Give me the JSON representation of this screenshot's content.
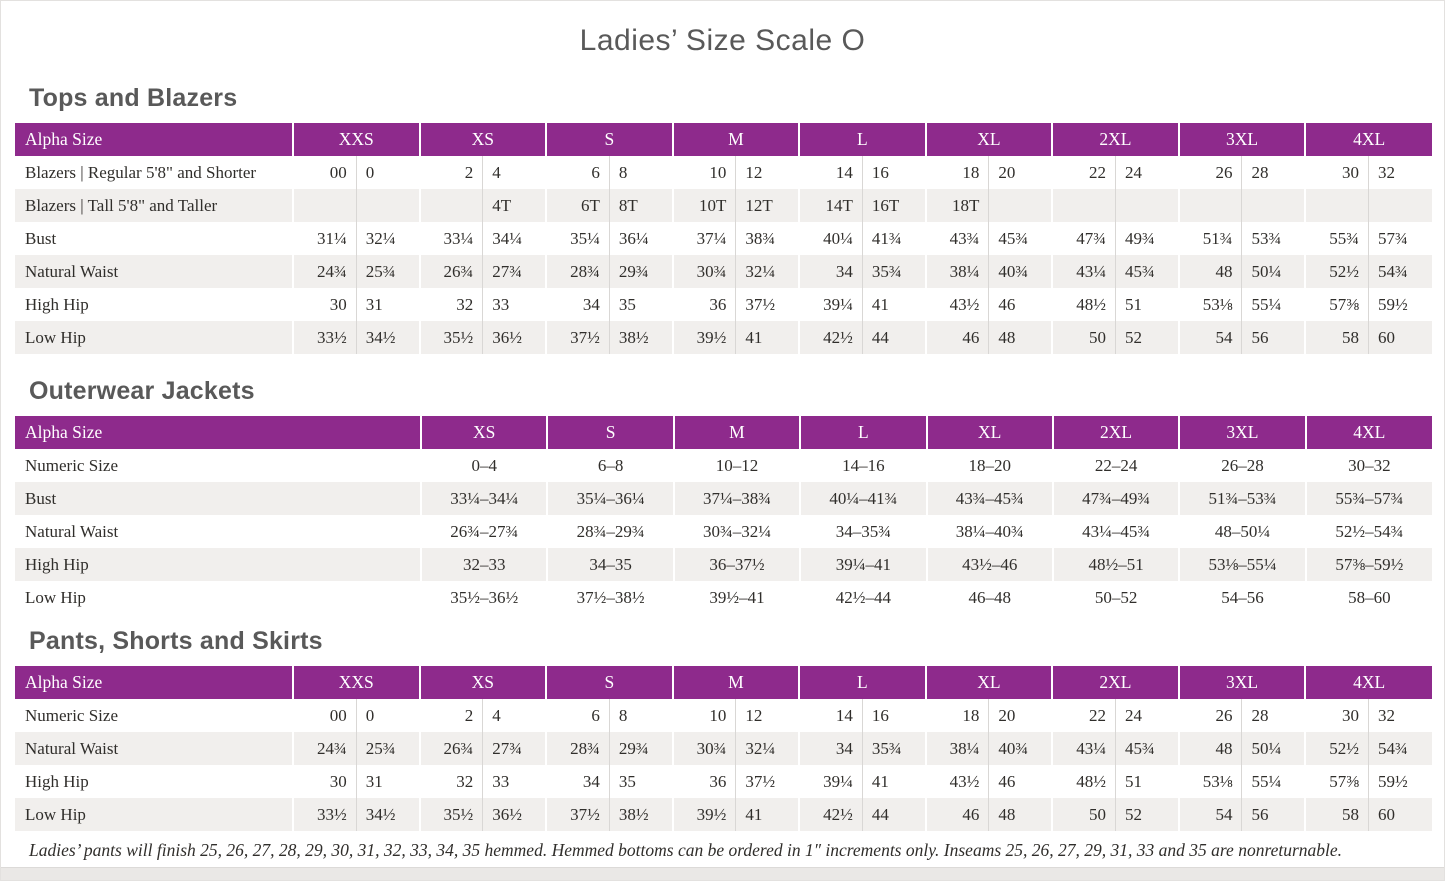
{
  "page": {
    "title": "Ladies’ Size Scale O",
    "footnote": "Ladies’ pants will finish 25, 26, 27, 28, 29, 30, 31, 32, 33, 34, 35 hemmed. Hemmed bottoms can be ordered in 1″ increments only. Inseams 25, 26, 27, 29, 31, 33 and 35 are nonreturnable."
  },
  "colors": {
    "header_purple": "#8e2a8c",
    "row_stripe": "#f1efed",
    "divider_gray": "#d9d7d5",
    "heading_gray": "#595959",
    "body_text": "#302e2b"
  },
  "tables": [
    {
      "section": "Tops and Blazers",
      "label_header": "Alpha Size",
      "type": "paired",
      "sizes": [
        "XXS",
        "XS",
        "S",
        "M",
        "L",
        "XL",
        "2XL",
        "3XL",
        "4XL"
      ],
      "rows": [
        {
          "label": "Blazers | Regular 5'8\" and Shorter",
          "values": [
            [
              "00",
              "0"
            ],
            [
              "2",
              "4"
            ],
            [
              "6",
              "8"
            ],
            [
              "10",
              "12"
            ],
            [
              "14",
              "16"
            ],
            [
              "18",
              "20"
            ],
            [
              "22",
              "24"
            ],
            [
              "26",
              "28"
            ],
            [
              "30",
              "32"
            ]
          ]
        },
        {
          "label": "Blazers | Tall 5'8\" and Taller",
          "values": [
            [
              "",
              ""
            ],
            [
              "",
              "4T"
            ],
            [
              "6T",
              "8T"
            ],
            [
              "10T",
              "12T"
            ],
            [
              "14T",
              "16T"
            ],
            [
              "18T",
              ""
            ],
            [
              "",
              ""
            ],
            [
              "",
              ""
            ],
            [
              "",
              ""
            ]
          ]
        },
        {
          "label": "Bust",
          "values": [
            [
              "31¼",
              "32¼"
            ],
            [
              "33¼",
              "34¼"
            ],
            [
              "35¼",
              "36¼"
            ],
            [
              "37¼",
              "38¾"
            ],
            [
              "40¼",
              "41¾"
            ],
            [
              "43¾",
              "45¾"
            ],
            [
              "47¾",
              "49¾"
            ],
            [
              "51¾",
              "53¾"
            ],
            [
              "55¾",
              "57¾"
            ]
          ]
        },
        {
          "label": "Natural Waist",
          "values": [
            [
              "24¾",
              "25¾"
            ],
            [
              "26¾",
              "27¾"
            ],
            [
              "28¾",
              "29¾"
            ],
            [
              "30¾",
              "32¼"
            ],
            [
              "34",
              "35¾"
            ],
            [
              "38¼",
              "40¾"
            ],
            [
              "43¼",
              "45¾"
            ],
            [
              "48",
              "50¼"
            ],
            [
              "52½",
              "54¾"
            ]
          ]
        },
        {
          "label": "High Hip",
          "values": [
            [
              "30",
              "31"
            ],
            [
              "32",
              "33"
            ],
            [
              "34",
              "35"
            ],
            [
              "36",
              "37½"
            ],
            [
              "39¼",
              "41"
            ],
            [
              "43½",
              "46"
            ],
            [
              "48½",
              "51"
            ],
            [
              "53⅛",
              "55¼"
            ],
            [
              "57⅜",
              "59½"
            ]
          ]
        },
        {
          "label": "Low Hip",
          "values": [
            [
              "33½",
              "34½"
            ],
            [
              "35½",
              "36½"
            ],
            [
              "37½",
              "38½"
            ],
            [
              "39½",
              "41"
            ],
            [
              "42½",
              "44"
            ],
            [
              "46",
              "48"
            ],
            [
              "50",
              "52"
            ],
            [
              "54",
              "56"
            ],
            [
              "58",
              "60"
            ]
          ]
        }
      ]
    },
    {
      "section": "Outerwear Jackets",
      "label_header": "Alpha Size",
      "type": "single",
      "sizes": [
        "XS",
        "S",
        "M",
        "L",
        "XL",
        "2XL",
        "3XL",
        "4XL"
      ],
      "rows": [
        {
          "label": "Numeric Size",
          "values": [
            "0–4",
            "6–8",
            "10–12",
            "14–16",
            "18–20",
            "22–24",
            "26–28",
            "30–32"
          ]
        },
        {
          "label": "Bust",
          "values": [
            "33¼–34¼",
            "35¼–36¼",
            "37¼–38¾",
            "40¼–41¾",
            "43¾–45¾",
            "47¾–49¾",
            "51¾–53¾",
            "55¾–57¾"
          ]
        },
        {
          "label": "Natural Waist",
          "values": [
            "26¾–27¾",
            "28¾–29¾",
            "30¾–32¼",
            "34–35¾",
            "38¼–40¾",
            "43¼–45¾",
            "48–50¼",
            "52½–54¾"
          ]
        },
        {
          "label": "High Hip",
          "values": [
            "32–33",
            "34–35",
            "36–37½",
            "39¼–41",
            "43½–46",
            "48½–51",
            "53⅛–55¼",
            "57⅜–59½"
          ]
        },
        {
          "label": "Low Hip",
          "values": [
            "35½–36½",
            "37½–38½",
            "39½–41",
            "42½–44",
            "46–48",
            "50–52",
            "54–56",
            "58–60"
          ]
        }
      ]
    },
    {
      "section": "Pants, Shorts and Skirts",
      "label_header": "Alpha Size",
      "type": "paired",
      "sizes": [
        "XXS",
        "XS",
        "S",
        "M",
        "L",
        "XL",
        "2XL",
        "3XL",
        "4XL"
      ],
      "rows": [
        {
          "label": "Numeric Size",
          "values": [
            [
              "00",
              "0"
            ],
            [
              "2",
              "4"
            ],
            [
              "6",
              "8"
            ],
            [
              "10",
              "12"
            ],
            [
              "14",
              "16"
            ],
            [
              "18",
              "20"
            ],
            [
              "22",
              "24"
            ],
            [
              "26",
              "28"
            ],
            [
              "30",
              "32"
            ]
          ]
        },
        {
          "label": "Natural Waist",
          "values": [
            [
              "24¾",
              "25¾"
            ],
            [
              "26¾",
              "27¾"
            ],
            [
              "28¾",
              "29¾"
            ],
            [
              "30¾",
              "32¼"
            ],
            [
              "34",
              "35¾"
            ],
            [
              "38¼",
              "40¾"
            ],
            [
              "43¼",
              "45¾"
            ],
            [
              "48",
              "50¼"
            ],
            [
              "52½",
              "54¾"
            ]
          ]
        },
        {
          "label": "High Hip",
          "values": [
            [
              "30",
              "31"
            ],
            [
              "32",
              "33"
            ],
            [
              "34",
              "35"
            ],
            [
              "36",
              "37½"
            ],
            [
              "39¼",
              "41"
            ],
            [
              "43½",
              "46"
            ],
            [
              "48½",
              "51"
            ],
            [
              "53⅛",
              "55¼"
            ],
            [
              "57⅜",
              "59½"
            ]
          ]
        },
        {
          "label": "Low Hip",
          "values": [
            [
              "33½",
              "34½"
            ],
            [
              "35½",
              "36½"
            ],
            [
              "37½",
              "38½"
            ],
            [
              "39½",
              "41"
            ],
            [
              "42½",
              "44"
            ],
            [
              "46",
              "48"
            ],
            [
              "50",
              "52"
            ],
            [
              "54",
              "56"
            ],
            [
              "58",
              "60"
            ]
          ]
        }
      ]
    }
  ]
}
